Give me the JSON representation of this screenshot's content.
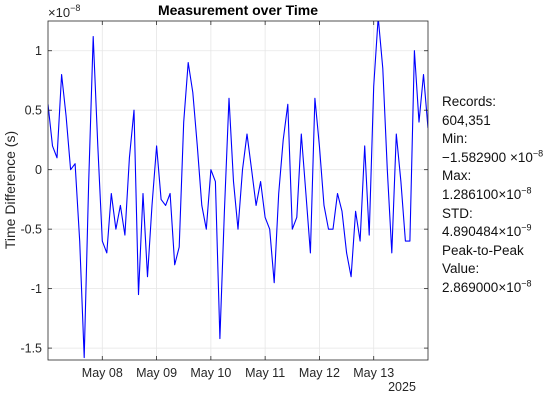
{
  "chart_data": {
    "type": "line",
    "title": "Measurement over Time",
    "ylabel": "Time Difference (s)",
    "xlabel": "",
    "y_exponent_label": "×10",
    "y_exponent": "−8",
    "y_scale": 1e-08,
    "ylim": [
      -1.6,
      1.25
    ],
    "y_ticks": [
      1,
      0.5,
      0,
      -0.5,
      -1,
      -1.5
    ],
    "y_tick_labels": [
      "1",
      "0.5",
      "0",
      "-0.5",
      "-1",
      "-1.5"
    ],
    "xlim": [
      "2025-05-07T00:00",
      "2025-05-14T00:00"
    ],
    "x_ticks": [
      "2025-05-08",
      "2025-05-09",
      "2025-05-10",
      "2025-05-11",
      "2025-05-12",
      "2025-05-13"
    ],
    "x_tick_labels": [
      "May 08",
      "May 09",
      "May 10",
      "May 11",
      "May 12",
      "May 13"
    ],
    "x_year_label": "2025",
    "grid": true,
    "line_color": "#0000ff",
    "series": [
      {
        "x": [
          "2025-05-07T00:00",
          "2025-05-07T02:00",
          "2025-05-07T04:00",
          "2025-05-07T06:00",
          "2025-05-07T08:00",
          "2025-05-07T10:00",
          "2025-05-07T12:00",
          "2025-05-07T14:00",
          "2025-05-07T16:00",
          "2025-05-07T18:00",
          "2025-05-07T20:00",
          "2025-05-07T22:00",
          "2025-05-08T00:00",
          "2025-05-08T02:00",
          "2025-05-08T04:00",
          "2025-05-08T06:00",
          "2025-05-08T08:00",
          "2025-05-08T10:00",
          "2025-05-08T12:00",
          "2025-05-08T14:00",
          "2025-05-08T16:00",
          "2025-05-08T18:00",
          "2025-05-08T20:00",
          "2025-05-08T22:00",
          "2025-05-09T00:00",
          "2025-05-09T02:00",
          "2025-05-09T04:00",
          "2025-05-09T06:00",
          "2025-05-09T08:00",
          "2025-05-09T10:00",
          "2025-05-09T12:00",
          "2025-05-09T14:00",
          "2025-05-09T16:00",
          "2025-05-09T18:00",
          "2025-05-09T20:00",
          "2025-05-09T22:00",
          "2025-05-10T00:00",
          "2025-05-10T02:00",
          "2025-05-10T04:00",
          "2025-05-10T06:00",
          "2025-05-10T08:00",
          "2025-05-10T10:00",
          "2025-05-10T12:00",
          "2025-05-10T14:00",
          "2025-05-10T16:00",
          "2025-05-10T18:00",
          "2025-05-10T20:00",
          "2025-05-10T22:00",
          "2025-05-11T00:00",
          "2025-05-11T02:00",
          "2025-05-11T04:00",
          "2025-05-11T06:00",
          "2025-05-11T08:00",
          "2025-05-11T10:00",
          "2025-05-11T12:00",
          "2025-05-11T14:00",
          "2025-05-11T16:00",
          "2025-05-11T18:00",
          "2025-05-11T20:00",
          "2025-05-11T22:00",
          "2025-05-12T00:00",
          "2025-05-12T02:00",
          "2025-05-12T04:00",
          "2025-05-12T06:00",
          "2025-05-12T08:00",
          "2025-05-12T10:00",
          "2025-05-12T12:00",
          "2025-05-12T14:00",
          "2025-05-12T16:00",
          "2025-05-12T18:00",
          "2025-05-12T20:00",
          "2025-05-12T22:00",
          "2025-05-13T00:00",
          "2025-05-13T02:00",
          "2025-05-13T04:00",
          "2025-05-13T06:00",
          "2025-05-13T08:00",
          "2025-05-13T10:00",
          "2025-05-13T12:00",
          "2025-05-13T14:00",
          "2025-05-13T16:00",
          "2025-05-13T18:00",
          "2025-05-13T20:00",
          "2025-05-13T22:00",
          "2025-05-14T00:00"
        ],
        "y": [
          0.55,
          0.2,
          0.1,
          0.8,
          0.45,
          0.0,
          0.05,
          -0.6,
          -1.58,
          -0.1,
          1.12,
          0.2,
          -0.6,
          -0.7,
          -0.2,
          -0.5,
          -0.3,
          -0.55,
          0.1,
          0.5,
          -1.05,
          -0.2,
          -0.9,
          -0.3,
          0.2,
          -0.25,
          -0.3,
          -0.2,
          -0.8,
          -0.65,
          0.4,
          0.9,
          0.65,
          0.2,
          -0.3,
          -0.5,
          0.0,
          -0.1,
          -1.42,
          -0.35,
          0.6,
          -0.1,
          -0.5,
          0.0,
          0.3,
          0.0,
          -0.3,
          -0.1,
          -0.4,
          -0.5,
          -0.95,
          -0.2,
          0.25,
          0.55,
          -0.5,
          -0.4,
          0.3,
          -0.2,
          -0.7,
          0.6,
          0.2,
          -0.3,
          -0.5,
          -0.5,
          -0.2,
          -0.35,
          -0.7,
          -0.9,
          -0.35,
          -0.6,
          0.2,
          -0.55,
          0.7,
          1.28,
          0.85,
          0.0,
          -0.7,
          0.3,
          -0.1,
          -0.6,
          -0.6,
          1.0,
          0.4,
          0.8,
          0.35
        ]
      }
    ]
  },
  "stats": {
    "records_label": "Records:",
    "records_value": "604,351",
    "min_label": "Min:",
    "min_mantissa": "−1.582900",
    "max_label": "Max:",
    "max_mantissa": "1.286100",
    "std_label": "STD:",
    "std_mantissa": "4.890484",
    "std_exp": "−9",
    "p2p_label_1": "Peak-to-Peak",
    "p2p_label_2": "Value:",
    "p2p_mantissa": "2.869000",
    "times_ten": "×10",
    "exp_minus8": "−8"
  }
}
